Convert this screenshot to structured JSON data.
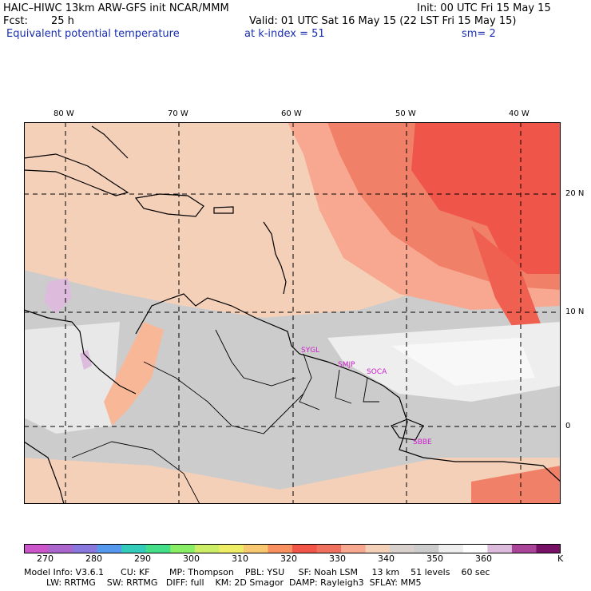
{
  "header": {
    "model": "HAIC–HIWC 13km ARW-GFS init   NCAR/MMM",
    "init": "Init: 00 UTC Fri 15 May 15",
    "fcst_label": "Fcst:",
    "fcst_value": "25 h",
    "valid": "Valid: 01 UTC Sat 16 May 15 (22 LST Fri 15 May 15)",
    "field": "Equivalent potential temperature",
    "level": "at k-index =  51",
    "smooth": "sm= 2"
  },
  "map": {
    "lon_labels": [
      "80 W",
      "70 W",
      "60 W",
      "50 W",
      "40 W"
    ],
    "lat_labels": [
      "20 N",
      "10 N",
      "0"
    ],
    "stations": [
      "SYGL",
      "SMJP",
      "SOCA",
      "SBBE"
    ],
    "colors": {
      "background_warm": "#f4c8b0",
      "background_gray": "#cfcfcf",
      "hot": "#f0554a"
    }
  },
  "colorbar": {
    "labels": [
      "270",
      "280",
      "290",
      "300",
      "310",
      "320",
      "330",
      "340",
      "350",
      "360"
    ],
    "unit": "K",
    "colors": [
      "#cc55cc",
      "#aa66cc",
      "#8877dd",
      "#5599ee",
      "#33ccbb",
      "#44dd88",
      "#88ee66",
      "#ccee66",
      "#eeee66",
      "#f8c870",
      "#f89060",
      "#f05548",
      "#f07060",
      "#f8a890",
      "#f4d0b8",
      "#d8d0cc",
      "#cccccc",
      "#eeeeee",
      "#ffffff",
      "#ddbbdd",
      "#aa4499",
      "#771166"
    ]
  },
  "footer": {
    "line1": "Model Info: V3.6.1      CU: KF       MP: Thompson    PBL: YSU     SF: Noah LSM     13 km    51 levels    60 sec",
    "line2": "        LW: RRTMG    SW: RRTMG   DIFF: full    KM: 2D Smagor  DAMP: Rayleigh3  SFLAY: MM5"
  }
}
